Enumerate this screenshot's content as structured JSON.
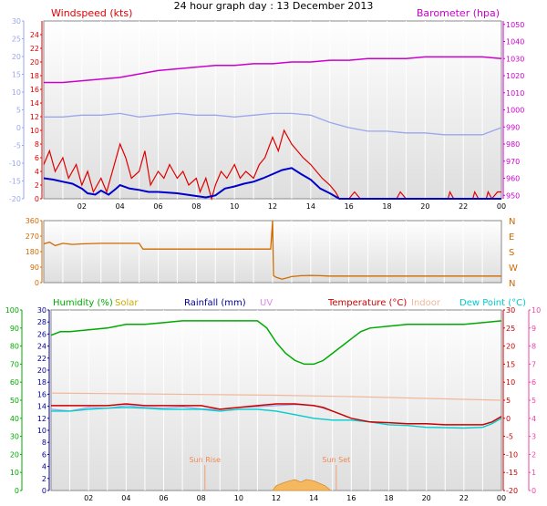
{
  "title": "24 hour graph day : 13 December 2013",
  "colors": {
    "wind": "#e00000",
    "gust": "#e00000",
    "avg": "#0000cc",
    "baro": "#cc00cc",
    "temp_blue": "#9aa6ee",
    "dir": "#d06a00",
    "hum": "#00aa00",
    "solar": "#ccaa00",
    "rain": "#000099",
    "uv": "#dd88ee",
    "temp": "#cc0000",
    "indoor": "#f0b89a",
    "dew": "#00cccc",
    "sun_area": "#f4b860"
  },
  "chart_data": [
    {
      "type": "line",
      "name": "wind-barometer",
      "labels": {
        "left": "Windspeed (kts)",
        "right": "Barometer (hpa)"
      },
      "x_ticks": [
        "02",
        "04",
        "06",
        "08",
        "10",
        "12",
        "14",
        "16",
        "18",
        "20",
        "22",
        "00"
      ],
      "axis_left_outer": {
        "ylim": [
          -20,
          30
        ],
        "ticks": [
          "-20",
          "-15",
          "-10",
          "-5",
          "0",
          "5",
          "10",
          "15",
          "20",
          "25",
          "30"
        ]
      },
      "axis_left_inner": {
        "ylim": [
          0,
          26
        ],
        "ticks": [
          "0",
          "2",
          "4",
          "6",
          "8",
          "10",
          "12",
          "14",
          "16",
          "18",
          "20",
          "22",
          "24"
        ]
      },
      "axis_right": {
        "ylim": [
          948,
          1052
        ],
        "ticks": [
          "950",
          "960",
          "970",
          "980",
          "990",
          "1000",
          "1010",
          "1020",
          "1030",
          "1040",
          "1050"
        ]
      },
      "barometer": [
        [
          0,
          1016
        ],
        [
          1,
          1016
        ],
        [
          2,
          1017
        ],
        [
          3,
          1018
        ],
        [
          4,
          1019
        ],
        [
          5,
          1021
        ],
        [
          6,
          1023
        ],
        [
          7,
          1024
        ],
        [
          8,
          1025
        ],
        [
          9,
          1026
        ],
        [
          10,
          1026
        ],
        [
          11,
          1027
        ],
        [
          12,
          1027
        ],
        [
          13,
          1028
        ],
        [
          14,
          1028
        ],
        [
          15,
          1029
        ],
        [
          16,
          1029
        ],
        [
          17,
          1030
        ],
        [
          18,
          1030
        ],
        [
          19,
          1030
        ],
        [
          20,
          1031
        ],
        [
          21,
          1031
        ],
        [
          22,
          1031
        ],
        [
          23,
          1031
        ],
        [
          24,
          1030
        ]
      ],
      "temperature": [
        [
          0,
          3
        ],
        [
          1,
          3
        ],
        [
          2,
          3.5
        ],
        [
          3,
          3.5
        ],
        [
          4,
          4
        ],
        [
          5,
          3
        ],
        [
          6,
          3.5
        ],
        [
          7,
          4
        ],
        [
          8,
          3.5
        ],
        [
          9,
          3.5
        ],
        [
          10,
          3
        ],
        [
          11,
          3.5
        ],
        [
          12,
          4
        ],
        [
          13,
          4
        ],
        [
          14,
          3.5
        ],
        [
          15,
          1.5
        ],
        [
          16,
          0
        ],
        [
          17,
          -1
        ],
        [
          18,
          -1
        ],
        [
          19,
          -1.5
        ],
        [
          20,
          -1.5
        ],
        [
          21,
          -2
        ],
        [
          22,
          -2
        ],
        [
          23,
          -2
        ],
        [
          23.5,
          -1
        ],
        [
          24,
          0
        ]
      ],
      "wind_avg": [
        [
          0,
          3
        ],
        [
          0.5,
          2.8
        ],
        [
          1,
          2.5
        ],
        [
          1.5,
          2.2
        ],
        [
          2,
          1.5
        ],
        [
          2.3,
          0.8
        ],
        [
          2.7,
          0.6
        ],
        [
          3,
          1.2
        ],
        [
          3.4,
          0.6
        ],
        [
          3.8,
          1.5
        ],
        [
          4,
          2
        ],
        [
          4.5,
          1.5
        ],
        [
          5,
          1.3
        ],
        [
          5.5,
          1
        ],
        [
          6,
          1
        ],
        [
          6.5,
          0.9
        ],
        [
          7,
          0.8
        ],
        [
          7.5,
          0.6
        ],
        [
          8,
          0.4
        ],
        [
          8.5,
          0.2
        ],
        [
          9,
          0.5
        ],
        [
          9.5,
          1.5
        ],
        [
          10,
          1.8
        ],
        [
          10.5,
          2.2
        ],
        [
          11,
          2.5
        ],
        [
          11.5,
          3
        ],
        [
          12,
          3.6
        ],
        [
          12.5,
          4.2
        ],
        [
          13,
          4.5
        ],
        [
          13.5,
          3.6
        ],
        [
          14,
          2.8
        ],
        [
          14.5,
          1.5
        ],
        [
          15,
          0.8
        ],
        [
          15.5,
          0
        ],
        [
          24,
          0
        ]
      ],
      "wind_gust": [
        [
          0,
          5
        ],
        [
          0.3,
          7
        ],
        [
          0.6,
          4
        ],
        [
          1,
          6
        ],
        [
          1.3,
          3
        ],
        [
          1.7,
          5
        ],
        [
          2,
          2
        ],
        [
          2.3,
          4
        ],
        [
          2.6,
          1
        ],
        [
          3,
          3
        ],
        [
          3.3,
          1
        ],
        [
          3.6,
          4
        ],
        [
          4,
          8
        ],
        [
          4.3,
          6
        ],
        [
          4.6,
          3
        ],
        [
          5,
          4
        ],
        [
          5.3,
          7
        ],
        [
          5.6,
          2
        ],
        [
          6,
          4
        ],
        [
          6.3,
          3
        ],
        [
          6.6,
          5
        ],
        [
          7,
          3
        ],
        [
          7.3,
          4
        ],
        [
          7.6,
          2
        ],
        [
          8,
          3
        ],
        [
          8.2,
          1
        ],
        [
          8.5,
          3
        ],
        [
          8.8,
          0
        ],
        [
          9,
          2
        ],
        [
          9.3,
          4
        ],
        [
          9.6,
          3
        ],
        [
          10,
          5
        ],
        [
          10.3,
          3
        ],
        [
          10.6,
          4
        ],
        [
          11,
          3
        ],
        [
          11.3,
          5
        ],
        [
          11.6,
          6
        ],
        [
          12,
          9
        ],
        [
          12.3,
          7
        ],
        [
          12.6,
          10
        ],
        [
          13,
          8
        ],
        [
          13.3,
          7
        ],
        [
          13.6,
          6
        ],
        [
          14,
          5
        ],
        [
          14.3,
          4
        ],
        [
          14.6,
          3
        ],
        [
          15,
          2
        ],
        [
          15.3,
          1
        ],
        [
          15.5,
          0
        ],
        [
          16,
          0
        ],
        [
          16.3,
          1
        ],
        [
          16.6,
          0
        ],
        [
          18.5,
          0
        ],
        [
          18.7,
          1
        ],
        [
          19,
          0
        ],
        [
          21.2,
          0
        ],
        [
          21.3,
          1
        ],
        [
          21.5,
          0
        ],
        [
          22.5,
          0
        ],
        [
          22.6,
          1
        ],
        [
          22.8,
          0
        ],
        [
          23.2,
          0
        ],
        [
          23.3,
          1
        ],
        [
          23.5,
          0
        ],
        [
          23.8,
          1
        ],
        [
          24,
          1
        ]
      ]
    },
    {
      "type": "line",
      "name": "wind-direction",
      "axis_left": {
        "ylim": [
          0,
          360
        ],
        "ticks": [
          "0",
          "90",
          "180",
          "270",
          "360"
        ]
      },
      "axis_right_labels": [
        "N",
        "W",
        "S",
        "E",
        "N"
      ],
      "direction": [
        [
          0,
          225
        ],
        [
          0.3,
          235
        ],
        [
          0.6,
          215
        ],
        [
          1,
          228
        ],
        [
          1.5,
          222
        ],
        [
          2,
          225
        ],
        [
          3,
          228
        ],
        [
          4,
          228
        ],
        [
          5,
          228
        ],
        [
          5.2,
          195
        ],
        [
          6,
          195
        ],
        [
          8,
          195
        ],
        [
          10,
          195
        ],
        [
          11,
          195
        ],
        [
          11.9,
          195
        ],
        [
          12,
          360
        ],
        [
          12.05,
          40
        ],
        [
          12.2,
          30
        ],
        [
          12.5,
          20
        ],
        [
          13,
          35
        ],
        [
          13.5,
          40
        ],
        [
          14,
          42
        ],
        [
          14.5,
          40
        ],
        [
          15,
          38
        ],
        [
          16,
          38
        ],
        [
          18,
          38
        ],
        [
          20,
          38
        ],
        [
          22,
          38
        ],
        [
          24,
          38
        ]
      ]
    },
    {
      "type": "line",
      "name": "temperature-humidity",
      "labels": {
        "humidity": "Humidity (%)",
        "solar": "Solar",
        "rainfall": "Rainfall (mm)",
        "uv": "UV",
        "temperature": "Temperature (°C)",
        "indoor": "Indoor",
        "dewpoint": "Dew Point (°C)"
      },
      "axis_left_outer": {
        "ylim": [
          0,
          100
        ],
        "ticks": [
          "0",
          "10",
          "20",
          "30",
          "40",
          "50",
          "60",
          "70",
          "80",
          "90",
          "100"
        ]
      },
      "axis_left_inner": {
        "ylim": [
          0,
          30
        ],
        "ticks": [
          "0",
          "2",
          "4",
          "6",
          "8",
          "10",
          "12",
          "14",
          "16",
          "18",
          "20",
          "22",
          "24",
          "26",
          "28",
          "30"
        ]
      },
      "axis_right_inner": {
        "ylim": [
          -20,
          30
        ],
        "ticks": [
          "-20",
          "-15",
          "-10",
          "-5",
          "0",
          "5",
          "10",
          "15",
          "20",
          "25",
          "30"
        ]
      },
      "axis_right_outer": {
        "ylim": [
          0,
          10
        ],
        "ticks": [
          "0",
          "1",
          "2",
          "3",
          "4",
          "5",
          "6",
          "7",
          "8",
          "9",
          "10"
        ]
      },
      "annotations": {
        "sunrise": "Sun Rise",
        "sunset": "Sun Set"
      },
      "sunrise_hour": 8.2,
      "sunset_hour": 15.2,
      "humidity": [
        [
          0,
          86
        ],
        [
          0.5,
          88
        ],
        [
          1,
          88
        ],
        [
          2,
          89
        ],
        [
          3,
          90
        ],
        [
          4,
          92
        ],
        [
          5,
          92
        ],
        [
          6,
          93
        ],
        [
          7,
          94
        ],
        [
          8,
          94
        ],
        [
          9,
          94
        ],
        [
          10,
          94
        ],
        [
          11,
          94
        ],
        [
          11.5,
          90
        ],
        [
          12,
          82
        ],
        [
          12.5,
          76
        ],
        [
          13,
          72
        ],
        [
          13.5,
          70
        ],
        [
          14,
          70
        ],
        [
          14.5,
          72
        ],
        [
          15,
          76
        ],
        [
          15.5,
          80
        ],
        [
          16,
          84
        ],
        [
          16.5,
          88
        ],
        [
          17,
          90
        ],
        [
          18,
          91
        ],
        [
          19,
          92
        ],
        [
          20,
          92
        ],
        [
          21,
          92
        ],
        [
          22,
          92
        ],
        [
          23,
          93
        ],
        [
          24,
          94
        ]
      ],
      "temperature": [
        [
          0,
          3.5
        ],
        [
          1,
          3.5
        ],
        [
          2,
          3.5
        ],
        [
          3,
          3.5
        ],
        [
          4,
          4
        ],
        [
          5,
          3.5
        ],
        [
          6,
          3.5
        ],
        [
          7,
          3.5
        ],
        [
          8,
          3.5
        ],
        [
          9,
          2.5
        ],
        [
          10,
          3
        ],
        [
          11,
          3.5
        ],
        [
          12,
          4
        ],
        [
          13,
          4
        ],
        [
          14,
          3.5
        ],
        [
          14.5,
          3
        ],
        [
          15,
          2
        ],
        [
          15.5,
          1
        ],
        [
          16,
          0
        ],
        [
          17,
          -1
        ],
        [
          18,
          -1.2
        ],
        [
          19,
          -1.5
        ],
        [
          20,
          -1.5
        ],
        [
          21,
          -1.8
        ],
        [
          22,
          -1.8
        ],
        [
          23,
          -1.8
        ],
        [
          23.5,
          -1
        ],
        [
          24,
          0.5
        ]
      ],
      "dewpoint": [
        [
          0,
          2
        ],
        [
          1,
          2
        ],
        [
          2,
          2.5
        ],
        [
          3,
          2.8
        ],
        [
          4,
          3
        ],
        [
          5,
          2.8
        ],
        [
          6,
          2.5
        ],
        [
          7,
          2.5
        ],
        [
          8,
          2.5
        ],
        [
          9,
          2
        ],
        [
          10,
          2.5
        ],
        [
          11,
          2.5
        ],
        [
          12,
          2
        ],
        [
          13,
          1
        ],
        [
          14,
          0
        ],
        [
          15,
          -0.5
        ],
        [
          16,
          -0.5
        ],
        [
          17,
          -1
        ],
        [
          18,
          -1.8
        ],
        [
          19,
          -2
        ],
        [
          20,
          -2.5
        ],
        [
          21,
          -2.6
        ],
        [
          22,
          -2.7
        ],
        [
          23,
          -2.5
        ],
        [
          23.5,
          -1.5
        ],
        [
          24,
          0
        ]
      ],
      "temp_blue": [
        [
          0,
          2.5
        ],
        [
          1,
          2
        ],
        [
          2,
          3
        ],
        [
          3,
          2.8
        ],
        [
          4,
          3.5
        ],
        [
          5,
          3
        ],
        [
          6,
          2.8
        ],
        [
          7,
          3.2
        ],
        [
          8,
          2.6
        ],
        [
          9,
          2.4
        ],
        [
          10,
          3
        ],
        [
          11,
          3.2
        ],
        [
          12,
          3.5
        ],
        [
          13,
          3.8
        ],
        [
          14,
          3.6
        ],
        [
          15,
          2
        ]
      ],
      "indoor": [
        [
          0,
          7
        ],
        [
          4,
          6.8
        ],
        [
          8,
          6.6
        ],
        [
          12,
          6.4
        ],
        [
          16,
          6
        ],
        [
          20,
          5.5
        ],
        [
          24,
          5
        ]
      ],
      "solar": [
        [
          11.8,
          0
        ],
        [
          12,
          0.8
        ],
        [
          12.3,
          1.2
        ],
        [
          12.6,
          1.5
        ],
        [
          13,
          1.8
        ],
        [
          13.3,
          1.4
        ],
        [
          13.6,
          1.8
        ],
        [
          14,
          1.6
        ],
        [
          14.3,
          1.2
        ],
        [
          14.6,
          0.8
        ],
        [
          14.9,
          0
        ]
      ]
    }
  ]
}
